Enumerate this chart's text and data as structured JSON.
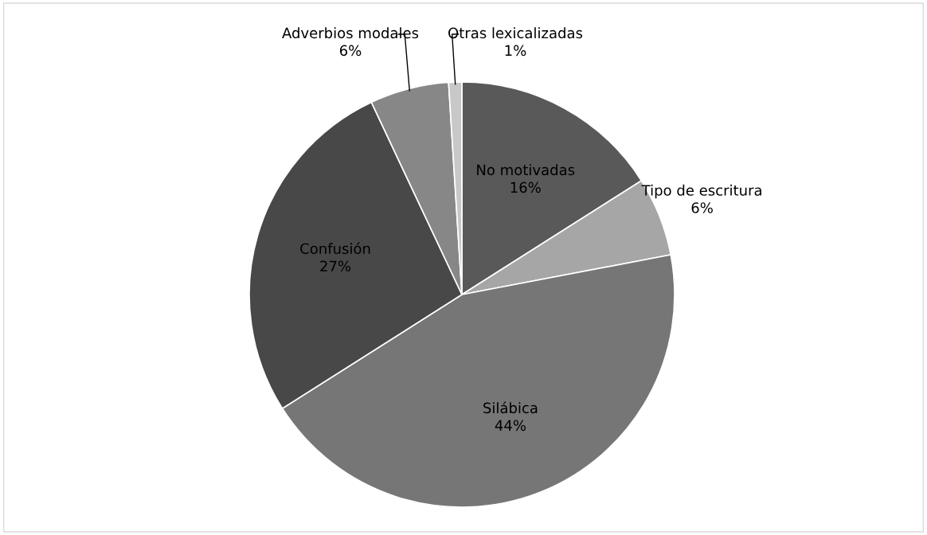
{
  "chart_data": {
    "type": "pie",
    "categories": [
      "No motivadas",
      "Tipo de escritura",
      "Silábica",
      "Confusión",
      "Adverbios modales",
      "Otras lexicalizadas"
    ],
    "values": [
      16,
      6,
      44,
      27,
      6,
      1
    ],
    "value_labels": [
      "16%",
      "6%",
      "44%",
      "27%",
      "6%",
      "1%"
    ],
    "colors": [
      "#595959",
      "#a6a6a6",
      "#767676",
      "#484848",
      "#878787",
      "#c8c8c8"
    ]
  }
}
